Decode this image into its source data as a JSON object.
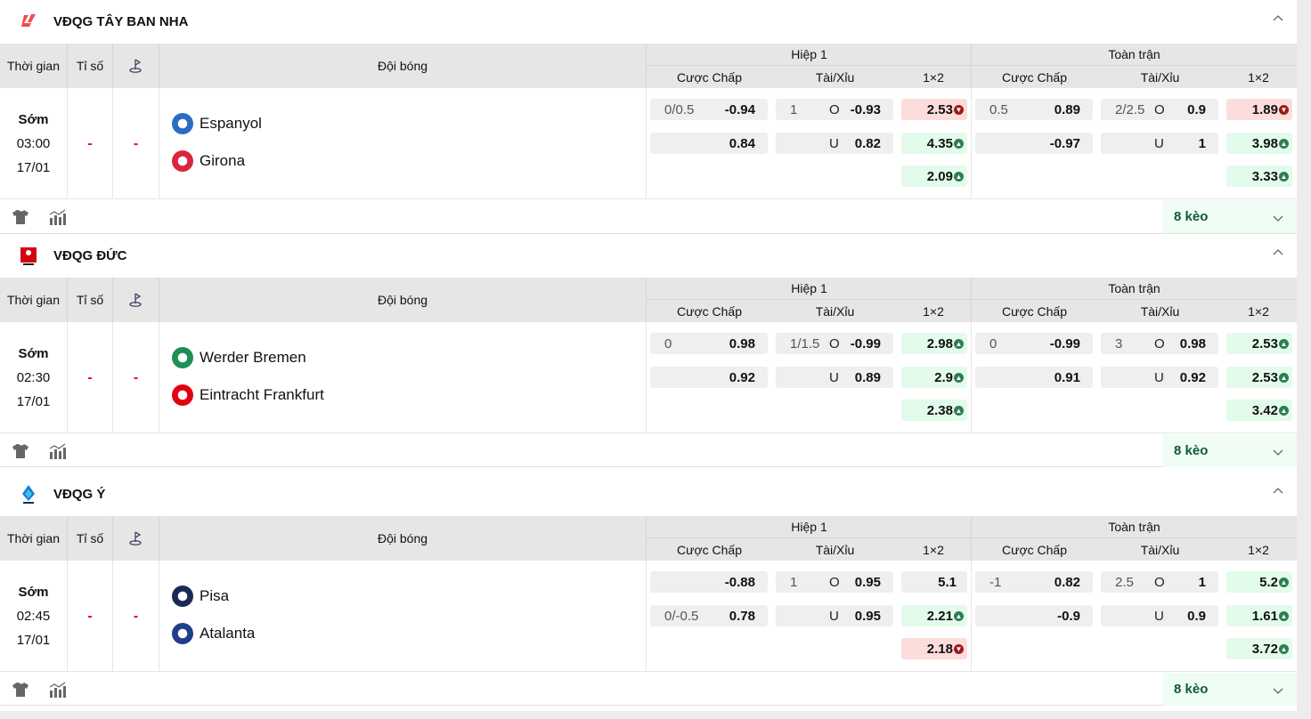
{
  "headers": {
    "time": "Thời gian",
    "score": "Tỉ số",
    "team": "Đội bóng",
    "half1": "Hiệp 1",
    "fulltime": "Toàn trận",
    "handicap": "Cược Chấp",
    "overunder": "Tài/Xỉu",
    "x12": "1×2"
  },
  "colors": {
    "up_bg": "#e2fbea",
    "down_bg": "#fddcdc",
    "up_icon": "#2f7d55",
    "down_icon": "#9b1c1c",
    "score_dash": "#e00000",
    "more_text": "#0f5a36"
  },
  "leagues": [
    {
      "name": "VĐQG TÂY BAN NHA",
      "icon": "laliga-logo",
      "match": {
        "status": "Sớm",
        "time": "03:00",
        "date": "17/01",
        "score": "-",
        "corner": "-",
        "home": {
          "name": "Espanyol",
          "color": "#2b6cc4"
        },
        "away": {
          "name": "Girona",
          "color": "#d7263d"
        },
        "h1": {
          "hdp": [
            {
              "line": "0/0.5",
              "odd": "-0.94"
            },
            {
              "line": "",
              "odd": "0.84"
            }
          ],
          "ou": [
            {
              "line": "1",
              "side": "O",
              "odd": "-0.93"
            },
            {
              "line": "",
              "side": "U",
              "odd": "0.82"
            }
          ],
          "x12": [
            {
              "v": "2.53",
              "t": "down"
            },
            {
              "v": "4.35",
              "t": "up"
            },
            {
              "v": "2.09",
              "t": "up"
            }
          ]
        },
        "ft": {
          "hdp": [
            {
              "line": "0.5",
              "odd": "0.89"
            },
            {
              "line": "",
              "odd": "-0.97"
            }
          ],
          "ou": [
            {
              "line": "2/2.5",
              "side": "O",
              "odd": "0.9"
            },
            {
              "line": "",
              "side": "U",
              "odd": "1"
            }
          ],
          "x12": [
            {
              "v": "1.89",
              "t": "down"
            },
            {
              "v": "3.98",
              "t": "up"
            },
            {
              "v": "3.33",
              "t": "up"
            }
          ]
        }
      },
      "more": "8 kèo"
    },
    {
      "name": "VĐQG ĐỨC",
      "icon": "bundesliga-logo",
      "match": {
        "status": "Sớm",
        "time": "02:30",
        "date": "17/01",
        "score": "-",
        "corner": "-",
        "home": {
          "name": "Werder Bremen",
          "color": "#1d9053"
        },
        "away": {
          "name": "Eintracht Frankfurt",
          "color": "#e1000f"
        },
        "h1": {
          "hdp": [
            {
              "line": "0",
              "odd": "0.98"
            },
            {
              "line": "",
              "odd": "0.92"
            }
          ],
          "ou": [
            {
              "line": "1/1.5",
              "side": "O",
              "odd": "-0.99"
            },
            {
              "line": "",
              "side": "U",
              "odd": "0.89"
            }
          ],
          "x12": [
            {
              "v": "2.98",
              "t": "up"
            },
            {
              "v": "2.9",
              "t": "up"
            },
            {
              "v": "2.38",
              "t": "up"
            }
          ]
        },
        "ft": {
          "hdp": [
            {
              "line": "0",
              "odd": "-0.99"
            },
            {
              "line": "",
              "odd": "0.91"
            }
          ],
          "ou": [
            {
              "line": "3",
              "side": "O",
              "odd": "0.98"
            },
            {
              "line": "",
              "side": "U",
              "odd": "0.92"
            }
          ],
          "x12": [
            {
              "v": "2.53",
              "t": "up"
            },
            {
              "v": "2.53",
              "t": "up"
            },
            {
              "v": "3.42",
              "t": "up"
            }
          ]
        }
      },
      "more": "8 kèo"
    },
    {
      "name": "VĐQG Ý",
      "icon": "serie-a-logo",
      "match": {
        "status": "Sớm",
        "time": "02:45",
        "date": "17/01",
        "score": "-",
        "corner": "-",
        "home": {
          "name": "Pisa",
          "color": "#1a2a55"
        },
        "away": {
          "name": "Atalanta",
          "color": "#1e3f8a"
        },
        "h1": {
          "hdp": [
            {
              "line": "",
              "odd": "-0.88"
            },
            {
              "line": "0/-0.5",
              "odd": "0.78"
            }
          ],
          "ou": [
            {
              "line": "1",
              "side": "O",
              "odd": "0.95"
            },
            {
              "line": "",
              "side": "U",
              "odd": "0.95"
            }
          ],
          "x12": [
            {
              "v": "5.1",
              "t": "none"
            },
            {
              "v": "2.21",
              "t": "up"
            },
            {
              "v": "2.18",
              "t": "down"
            }
          ]
        },
        "ft": {
          "hdp": [
            {
              "line": "-1",
              "odd": "0.82"
            },
            {
              "line": "",
              "odd": "-0.9"
            }
          ],
          "ou": [
            {
              "line": "2.5",
              "side": "O",
              "odd": "1"
            },
            {
              "line": "",
              "side": "U",
              "odd": "0.9"
            }
          ],
          "x12": [
            {
              "v": "5.2",
              "t": "up"
            },
            {
              "v": "1.61",
              "t": "up"
            },
            {
              "v": "3.72",
              "t": "up"
            }
          ]
        }
      },
      "more": "8 kèo"
    }
  ]
}
